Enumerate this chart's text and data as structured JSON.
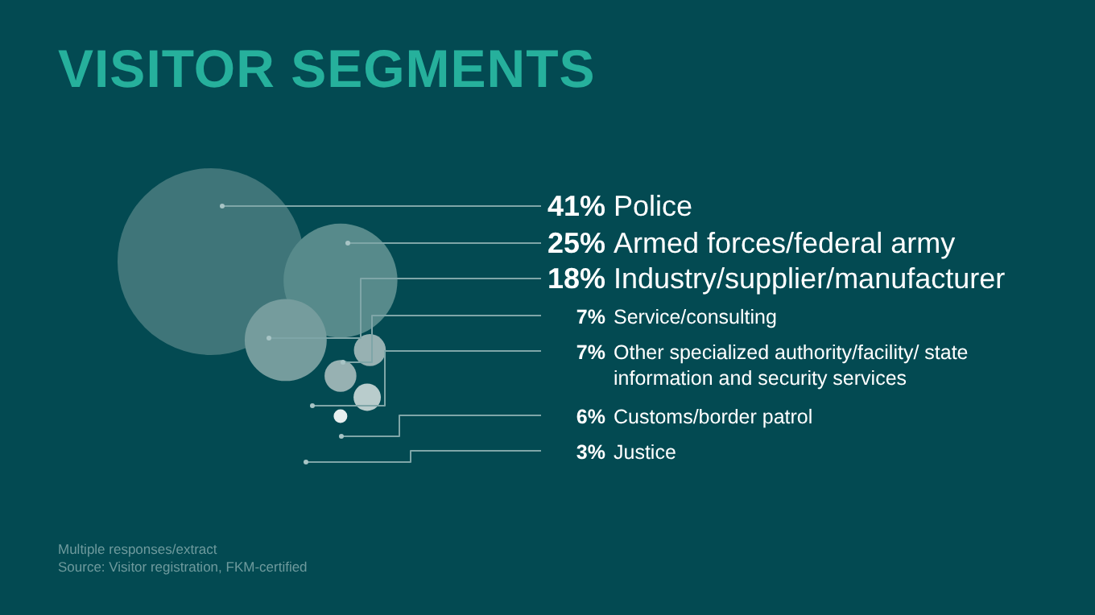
{
  "chart_data": {
    "type": "other",
    "title": "VISITOR SEGMENTS",
    "categories": [
      "Police",
      "Armed forces/federal army",
      "Industry/supplier/manufacturer",
      "Service/consulting",
      "Other specialized authority/facility/ state information and security services",
      "Customs/border patrol",
      "Justice"
    ],
    "values": [
      41,
      25,
      18,
      7,
      7,
      6,
      3
    ],
    "value_labels": [
      "41%",
      "25%",
      "18%",
      "7%",
      "7%",
      "6%",
      "3%"
    ],
    "colors": [
      "#3f7579",
      "#578a8b",
      "#759c9d",
      "#97b1b2",
      "#97b1b2",
      "#b9cccc",
      "#e8efef"
    ],
    "legend": false,
    "annotations": [
      "Multiple responses/extract",
      "Source: Visitor registration, FKM-certified"
    ]
  }
}
